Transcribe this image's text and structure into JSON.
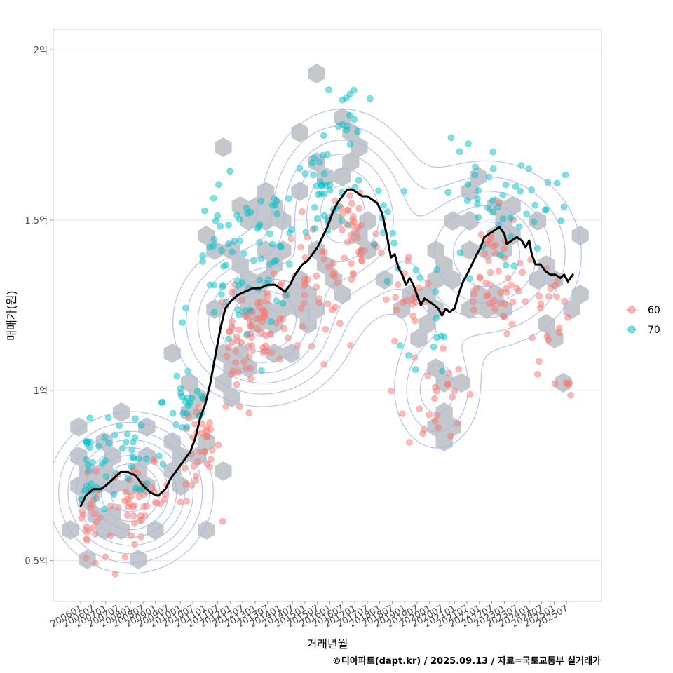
{
  "chart_data": {
    "type": "scatter",
    "ylabel": "매매가(원)",
    "xlabel": "거래년월",
    "caption": "©디아파트(dapt.kr) / 2025.09.13 / 자료=국토교통부 실거래가",
    "x_range": [
      2006.0,
      2025.75
    ],
    "xlim": [
      2004.9,
      2026.9
    ],
    "ylim": [
      0.38,
      2.06
    ],
    "y_ticks": [
      {
        "value": 0.5,
        "label": "0.5억"
      },
      {
        "value": 1.0,
        "label": "1억"
      },
      {
        "value": 1.5,
        "label": "1.5억"
      },
      {
        "value": 2.0,
        "label": "2억"
      }
    ],
    "x_ticks": [
      {
        "value": 2006.0,
        "label": "200601"
      },
      {
        "value": 2006.5,
        "label": "200607"
      },
      {
        "value": 2007.0,
        "label": "200701"
      },
      {
        "value": 2007.5,
        "label": "200707"
      },
      {
        "value": 2008.0,
        "label": "200801"
      },
      {
        "value": 2008.5,
        "label": "200807"
      },
      {
        "value": 2009.0,
        "label": "200901"
      },
      {
        "value": 2009.5,
        "label": "200907"
      },
      {
        "value": 2010.0,
        "label": "201001"
      },
      {
        "value": 2010.5,
        "label": "201007"
      },
      {
        "value": 2011.0,
        "label": "201101"
      },
      {
        "value": 2011.5,
        "label": "201107"
      },
      {
        "value": 2012.0,
        "label": "201201"
      },
      {
        "value": 2012.5,
        "label": "201207"
      },
      {
        "value": 2013.0,
        "label": "201301"
      },
      {
        "value": 2013.5,
        "label": "201307"
      },
      {
        "value": 2014.0,
        "label": "201401"
      },
      {
        "value": 2014.5,
        "label": "201407"
      },
      {
        "value": 2015.0,
        "label": "201501"
      },
      {
        "value": 2015.5,
        "label": "201507"
      },
      {
        "value": 2016.0,
        "label": "201601"
      },
      {
        "value": 2016.5,
        "label": "201607"
      },
      {
        "value": 2017.0,
        "label": "201701"
      },
      {
        "value": 2017.5,
        "label": "201707"
      },
      {
        "value": 2018.0,
        "label": "201801"
      },
      {
        "value": 2018.5,
        "label": "201807"
      },
      {
        "value": 2019.0,
        "label": "201901"
      },
      {
        "value": 2019.5,
        "label": "201907"
      },
      {
        "value": 2020.0,
        "label": "202001"
      },
      {
        "value": 2020.5,
        "label": "202007"
      },
      {
        "value": 2021.0,
        "label": "202101"
      },
      {
        "value": 2021.5,
        "label": "202107"
      },
      {
        "value": 2022.0,
        "label": "202201"
      },
      {
        "value": 2022.5,
        "label": "202207"
      },
      {
        "value": 2023.0,
        "label": "202301"
      },
      {
        "value": 2023.5,
        "label": "202307"
      },
      {
        "value": 2024.0,
        "label": "202401"
      },
      {
        "value": 2024.5,
        "label": "202407"
      },
      {
        "value": 2025.0,
        "label": "202501"
      },
      {
        "value": 2025.5,
        "label": "202507"
      }
    ],
    "legend": [
      {
        "name": "60",
        "color": "#F8766D"
      },
      {
        "name": "70",
        "color": "#00BFC4"
      }
    ],
    "trend_line": {
      "color": "#000000",
      "points": [
        [
          2006.0,
          0.66
        ],
        [
          2006.2,
          0.69
        ],
        [
          2006.5,
          0.71
        ],
        [
          2006.8,
          0.71
        ],
        [
          2007.0,
          0.72
        ],
        [
          2007.3,
          0.74
        ],
        [
          2007.6,
          0.76
        ],
        [
          2007.9,
          0.76
        ],
        [
          2008.2,
          0.75
        ],
        [
          2008.5,
          0.72
        ],
        [
          2008.8,
          0.7
        ],
        [
          2009.1,
          0.69
        ],
        [
          2009.4,
          0.71
        ],
        [
          2009.6,
          0.74
        ],
        [
          2009.9,
          0.77
        ],
        [
          2010.1,
          0.79
        ],
        [
          2010.4,
          0.82
        ],
        [
          2010.6,
          0.86
        ],
        [
          2010.8,
          0.92
        ],
        [
          2011.0,
          0.96
        ],
        [
          2011.2,
          1.02
        ],
        [
          2011.4,
          1.1
        ],
        [
          2011.6,
          1.18
        ],
        [
          2011.8,
          1.24
        ],
        [
          2012.0,
          1.26
        ],
        [
          2012.3,
          1.28
        ],
        [
          2012.6,
          1.29
        ],
        [
          2012.9,
          1.3
        ],
        [
          2013.2,
          1.3
        ],
        [
          2013.5,
          1.31
        ],
        [
          2013.8,
          1.31
        ],
        [
          2014.0,
          1.3
        ],
        [
          2014.2,
          1.29
        ],
        [
          2014.4,
          1.31
        ],
        [
          2014.6,
          1.34
        ],
        [
          2014.9,
          1.37
        ],
        [
          2015.1,
          1.38
        ],
        [
          2015.3,
          1.4
        ],
        [
          2015.5,
          1.42
        ],
        [
          2015.7,
          1.45
        ],
        [
          2015.9,
          1.48
        ],
        [
          2016.1,
          1.52
        ],
        [
          2016.3,
          1.55
        ],
        [
          2016.5,
          1.57
        ],
        [
          2016.7,
          1.59
        ],
        [
          2016.9,
          1.59
        ],
        [
          2017.1,
          1.58
        ],
        [
          2017.3,
          1.57
        ],
        [
          2017.5,
          1.57
        ],
        [
          2017.7,
          1.56
        ],
        [
          2017.9,
          1.55
        ],
        [
          2018.1,
          1.52
        ],
        [
          2018.3,
          1.45
        ],
        [
          2018.45,
          1.39
        ],
        [
          2018.6,
          1.4
        ],
        [
          2018.75,
          1.36
        ],
        [
          2018.9,
          1.34
        ],
        [
          2019.05,
          1.31
        ],
        [
          2019.2,
          1.33
        ],
        [
          2019.35,
          1.31
        ],
        [
          2019.5,
          1.28
        ],
        [
          2019.65,
          1.25
        ],
        [
          2019.8,
          1.27
        ],
        [
          2020.0,
          1.26
        ],
        [
          2020.2,
          1.25
        ],
        [
          2020.35,
          1.24
        ],
        [
          2020.5,
          1.22
        ],
        [
          2020.65,
          1.24
        ],
        [
          2020.8,
          1.23
        ],
        [
          2021.0,
          1.24
        ],
        [
          2021.2,
          1.29
        ],
        [
          2021.35,
          1.32
        ],
        [
          2021.5,
          1.34
        ],
        [
          2021.7,
          1.37
        ],
        [
          2021.9,
          1.4
        ],
        [
          2022.05,
          1.42
        ],
        [
          2022.2,
          1.45
        ],
        [
          2022.4,
          1.46
        ],
        [
          2022.6,
          1.47
        ],
        [
          2022.8,
          1.48
        ],
        [
          2023.0,
          1.46
        ],
        [
          2023.1,
          1.43
        ],
        [
          2023.3,
          1.44
        ],
        [
          2023.5,
          1.45
        ],
        [
          2023.7,
          1.44
        ],
        [
          2023.85,
          1.42
        ],
        [
          2024.0,
          1.44
        ],
        [
          2024.1,
          1.4
        ],
        [
          2024.25,
          1.37
        ],
        [
          2024.45,
          1.37
        ],
        [
          2024.65,
          1.35
        ],
        [
          2024.85,
          1.34
        ],
        [
          2025.05,
          1.34
        ],
        [
          2025.25,
          1.33
        ],
        [
          2025.4,
          1.34
        ],
        [
          2025.55,
          1.32
        ],
        [
          2025.75,
          1.34
        ]
      ]
    },
    "point_clusters": [
      {
        "name": "60",
        "center": [
          2006.3,
          0.6
        ],
        "spread": [
          0.4,
          0.07
        ],
        "count": 30
      },
      {
        "name": "70",
        "center": [
          2006.3,
          0.78
        ],
        "spread": [
          0.4,
          0.08
        ],
        "count": 35
      },
      {
        "name": "60",
        "center": [
          2008.4,
          0.68
        ],
        "spread": [
          0.6,
          0.05
        ],
        "count": 45
      },
      {
        "name": "70",
        "center": [
          2008.0,
          0.8
        ],
        "spread": [
          0.7,
          0.05
        ],
        "count": 25
      },
      {
        "name": "60",
        "center": [
          2010.8,
          0.82
        ],
        "spread": [
          0.4,
          0.08
        ],
        "count": 35
      },
      {
        "name": "70",
        "center": [
          2010.3,
          0.97
        ],
        "spread": [
          0.5,
          0.07
        ],
        "count": 25
      },
      {
        "name": "60",
        "center": [
          2012.3,
          1.1
        ],
        "spread": [
          0.5,
          0.1
        ],
        "count": 30
      },
      {
        "name": "70",
        "center": [
          2011.8,
          1.35
        ],
        "spread": [
          0.6,
          0.12
        ],
        "count": 40
      },
      {
        "name": "60",
        "center": [
          2013.4,
          1.2
        ],
        "spread": [
          0.6,
          0.06
        ],
        "count": 50
      },
      {
        "name": "70",
        "center": [
          2013.6,
          1.42
        ],
        "spread": [
          0.6,
          0.09
        ],
        "count": 35
      },
      {
        "name": "60",
        "center": [
          2015.4,
          1.3
        ],
        "spread": [
          0.6,
          0.1
        ],
        "count": 35
      },
      {
        "name": "70",
        "center": [
          2015.6,
          1.56
        ],
        "spread": [
          0.6,
          0.08
        ],
        "count": 35
      },
      {
        "name": "70",
        "center": [
          2016.8,
          1.78
        ],
        "spread": [
          0.5,
          0.09
        ],
        "count": 15
      },
      {
        "name": "60",
        "center": [
          2017.0,
          1.46
        ],
        "spread": [
          0.5,
          0.09
        ],
        "count": 40
      },
      {
        "name": "70",
        "center": [
          2018.4,
          1.52
        ],
        "spread": [
          0.5,
          0.07
        ],
        "count": 10
      },
      {
        "name": "60",
        "center": [
          2019.2,
          1.26
        ],
        "spread": [
          0.5,
          0.07
        ],
        "count": 20
      },
      {
        "name": "60",
        "center": [
          2020.2,
          0.98
        ],
        "spread": [
          0.6,
          0.08
        ],
        "count": 25
      },
      {
        "name": "70",
        "center": [
          2020.3,
          1.25
        ],
        "spread": [
          0.6,
          0.1
        ],
        "count": 15
      },
      {
        "name": "60",
        "center": [
          2022.4,
          1.34
        ],
        "spread": [
          0.6,
          0.09
        ],
        "count": 40
      },
      {
        "name": "70",
        "center": [
          2022.2,
          1.55
        ],
        "spread": [
          0.8,
          0.1
        ],
        "count": 35
      },
      {
        "name": "60",
        "center": [
          2024.2,
          1.26
        ],
        "spread": [
          0.7,
          0.07
        ],
        "count": 25
      },
      {
        "name": "70",
        "center": [
          2024.6,
          1.55
        ],
        "spread": [
          0.6,
          0.06
        ],
        "count": 12
      },
      {
        "name": "60",
        "center": [
          2025.2,
          1.03
        ],
        "spread": [
          0.4,
          0.04
        ],
        "count": 8
      }
    ],
    "hexbin_regions": [
      {
        "center": [
          2006.4,
          0.68
        ],
        "spread": [
          0.5,
          0.14
        ],
        "count": 18
      },
      {
        "center": [
          2008.2,
          0.74
        ],
        "spread": [
          0.7,
          0.09
        ],
        "count": 16
      },
      {
        "center": [
          2010.6,
          0.88
        ],
        "spread": [
          0.6,
          0.15
        ],
        "count": 18
      },
      {
        "center": [
          2012.2,
          1.25
        ],
        "spread": [
          0.6,
          0.18
        ],
        "count": 22
      },
      {
        "center": [
          2014.0,
          1.3
        ],
        "spread": [
          0.8,
          0.14
        ],
        "count": 22
      },
      {
        "center": [
          2016.2,
          1.55
        ],
        "spread": [
          0.8,
          0.18
        ],
        "count": 20
      },
      {
        "center": [
          2019.3,
          1.3
        ],
        "spread": [
          0.9,
          0.14
        ],
        "count": 14
      },
      {
        "center": [
          2020.3,
          0.98
        ],
        "spread": [
          0.5,
          0.08
        ],
        "count": 10
      },
      {
        "center": [
          2022.7,
          1.45
        ],
        "spread": [
          1.2,
          0.16
        ],
        "count": 26
      },
      {
        "center": [
          2024.8,
          1.28
        ],
        "spread": [
          0.8,
          0.12
        ],
        "count": 12
      }
    ],
    "density_contours": {
      "color": "#A9B6EE",
      "peaks": [
        {
          "center": [
            2008.0,
            0.7
          ],
          "spread": [
            1.4,
            0.1
          ],
          "weight": 1.0
        },
        {
          "center": [
            2013.3,
            1.2
          ],
          "spread": [
            1.6,
            0.11
          ],
          "weight": 0.75
        },
        {
          "center": [
            2016.5,
            1.52
          ],
          "spread": [
            1.5,
            0.14
          ],
          "weight": 0.65
        },
        {
          "center": [
            2022.3,
            1.4
          ],
          "spread": [
            1.8,
            0.13
          ],
          "weight": 0.55
        },
        {
          "center": [
            2020.3,
            1.0
          ],
          "spread": [
            1.0,
            0.1
          ],
          "weight": 0.25
        }
      ],
      "levels": [
        0.06,
        0.12,
        0.2,
        0.3,
        0.42,
        0.55,
        0.7,
        0.85
      ]
    }
  }
}
